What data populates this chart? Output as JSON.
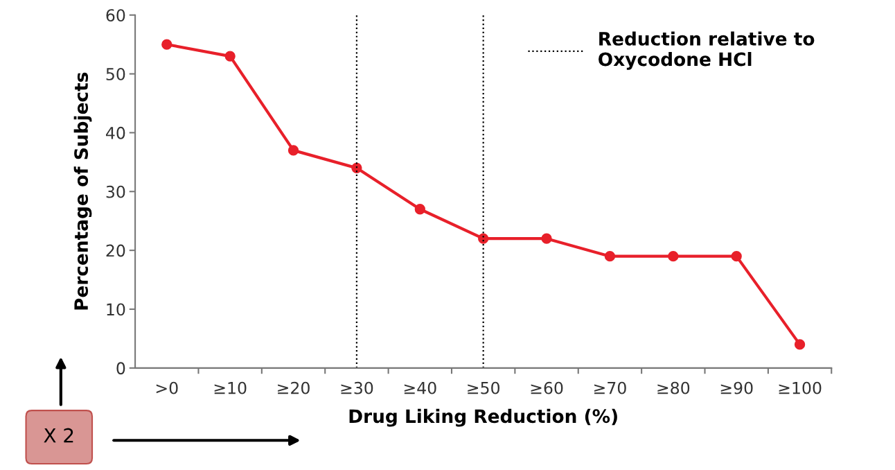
{
  "chart_data": {
    "type": "line",
    "xlabel": "Drug Liking Reduction (%)",
    "ylabel": "Percentage of Subjects",
    "categories": [
      ">0",
      "≥10",
      "≥20",
      "≥30",
      "≥40",
      "≥50",
      "≥60",
      "≥70",
      "≥80",
      "≥90",
      "≥100"
    ],
    "series": [
      {
        "color": "#e8202a",
        "values": [
          55,
          53,
          37,
          34,
          27,
          22,
          22,
          19,
          19,
          19,
          4
        ]
      }
    ],
    "ylim": [
      0,
      60
    ],
    "yticks": [
      0,
      10,
      20,
      30,
      40,
      50,
      60
    ],
    "marker": "circle",
    "line_style": "solid",
    "grid": false,
    "legend": "top right",
    "ref_lines": [
      {
        "axis": "x",
        "value": "≥30",
        "label": "Reduction relative to\nOxycodone HCl",
        "color": "#000000",
        "line_style": "dotted"
      },
      {
        "axis": "x",
        "value": "≥50",
        "label": null,
        "color": "#000000",
        "line_style": "dotted"
      }
    ],
    "annotations": [
      "X 2"
    ]
  }
}
